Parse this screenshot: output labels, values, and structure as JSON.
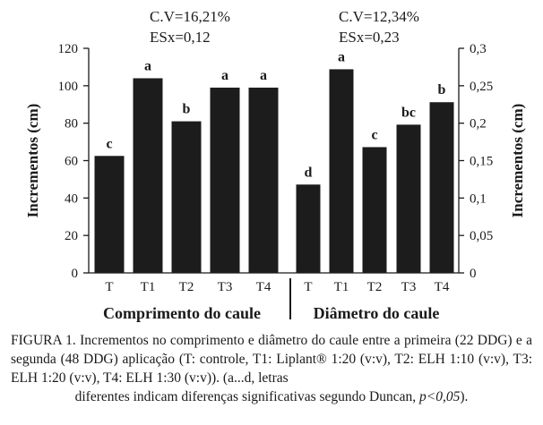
{
  "chart_data": {
    "type": "bar",
    "ylabel_left": "Incrementos (cm)",
    "ylabel_right": "Incrementos (cm)",
    "left_axis": {
      "ylim": [
        0,
        120
      ],
      "ticks": [
        "0",
        "20",
        "40",
        "60",
        "80",
        "100",
        "120"
      ]
    },
    "right_axis": {
      "ylim": [
        0,
        0.3
      ],
      "ticks": [
        "0",
        "0,05",
        "0,1",
        "0,15",
        "0,2",
        "0,25",
        "0,3"
      ]
    },
    "panels": [
      {
        "group_label": "Comprimento do caule",
        "axis": "left",
        "stats": [
          "C.V=16,21%",
          "ESx=0,12"
        ],
        "categories": [
          "T",
          "T1",
          "T2",
          "T3",
          "T4"
        ],
        "values": [
          62.5,
          104,
          81,
          99,
          99
        ],
        "letters": [
          "c",
          "a",
          "b",
          "a",
          "a"
        ]
      },
      {
        "group_label": "Diâmetro do caule",
        "axis": "right",
        "stats": [
          "C.V=12,34%",
          "ESx=0,23"
        ],
        "categories": [
          "T",
          "T1",
          "T2",
          "T3",
          "T4"
        ],
        "values": [
          0.118,
          0.272,
          0.168,
          0.198,
          0.228
        ],
        "letters": [
          "d",
          "a",
          "c",
          "bc",
          "b"
        ]
      }
    ],
    "bar_color": "#1c1c1c",
    "grid": false
  },
  "caption": {
    "main": "FIGURA 1. Incrementos no comprimento e diâmetro do caule entre a primeira (22 DDG) e a segunda (48 DDG) aplicação (T: controle, T1: Liplant® 1:20 (v:v), T2: ELH 1:10 (v:v), T3: ELH 1:20 (v:v), T4: ELH 1:30 (v:v)). (a...d, letras",
    "tail_text": "diferentes indicam diferenças significativas segundo Duncan,",
    "tail_italic": "p<0,05",
    "tail_end": ")."
  }
}
